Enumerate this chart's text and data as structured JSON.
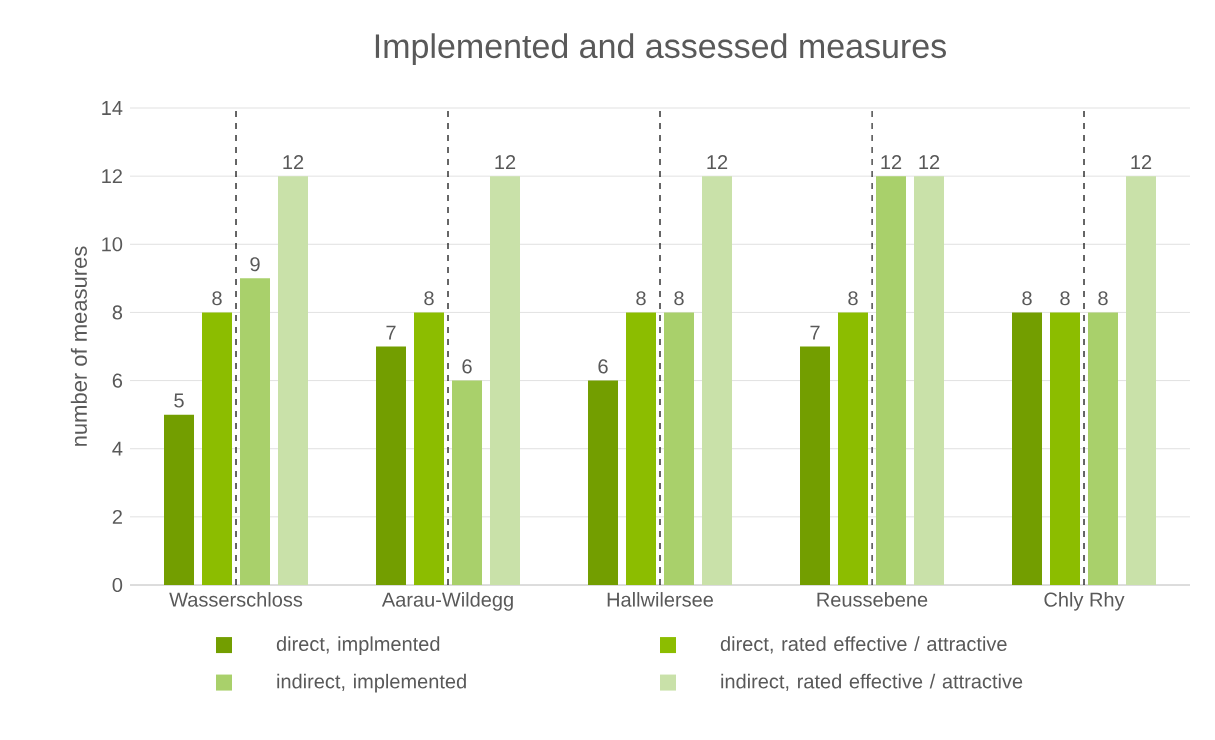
{
  "chart_data": {
    "type": "bar",
    "title": "Implemented and assessed measures",
    "ylabel": "number of measures",
    "categories": [
      "Wasserschloss",
      "Aarau-Wildegg",
      "Hallwilersee",
      "Reussebene",
      "Chly Rhy"
    ],
    "series": [
      {
        "name": "direct, implmented",
        "color": "#739e00",
        "values": [
          5,
          7,
          6,
          7,
          8
        ]
      },
      {
        "name": "direct, rated effective / attractive",
        "color": "#8cbd00",
        "values": [
          8,
          8,
          8,
          8,
          8
        ]
      },
      {
        "name": "indirect, implemented",
        "color": "#a9d06b",
        "values": [
          9,
          6,
          8,
          12,
          8
        ]
      },
      {
        "name": "indirect, rated effective / attractive",
        "color": "#c9e1a9",
        "values": [
          12,
          12,
          12,
          12,
          12
        ]
      }
    ],
    "ylim": [
      0,
      14
    ],
    "yticks": [
      0,
      2,
      4,
      6,
      8,
      10,
      12,
      14
    ],
    "grid": "y",
    "legend": "bottom",
    "data_labels": true,
    "ref_lines": [
      {
        "axis": "x",
        "value": "Wasserschloss",
        "line_style": "dashed",
        "color": "#000000"
      },
      {
        "axis": "x",
        "value": "Aarau-Wildegg",
        "line_style": "dashed",
        "color": "#000000"
      },
      {
        "axis": "x",
        "value": "Hallwilersee",
        "line_style": "dashed",
        "color": "#000000"
      },
      {
        "axis": "x",
        "value": "Reussebene",
        "line_style": "dashed",
        "color": "#000000"
      },
      {
        "axis": "x",
        "value": "Chly Rhy",
        "line_style": "dashed",
        "color": "#000000"
      }
    ]
  }
}
